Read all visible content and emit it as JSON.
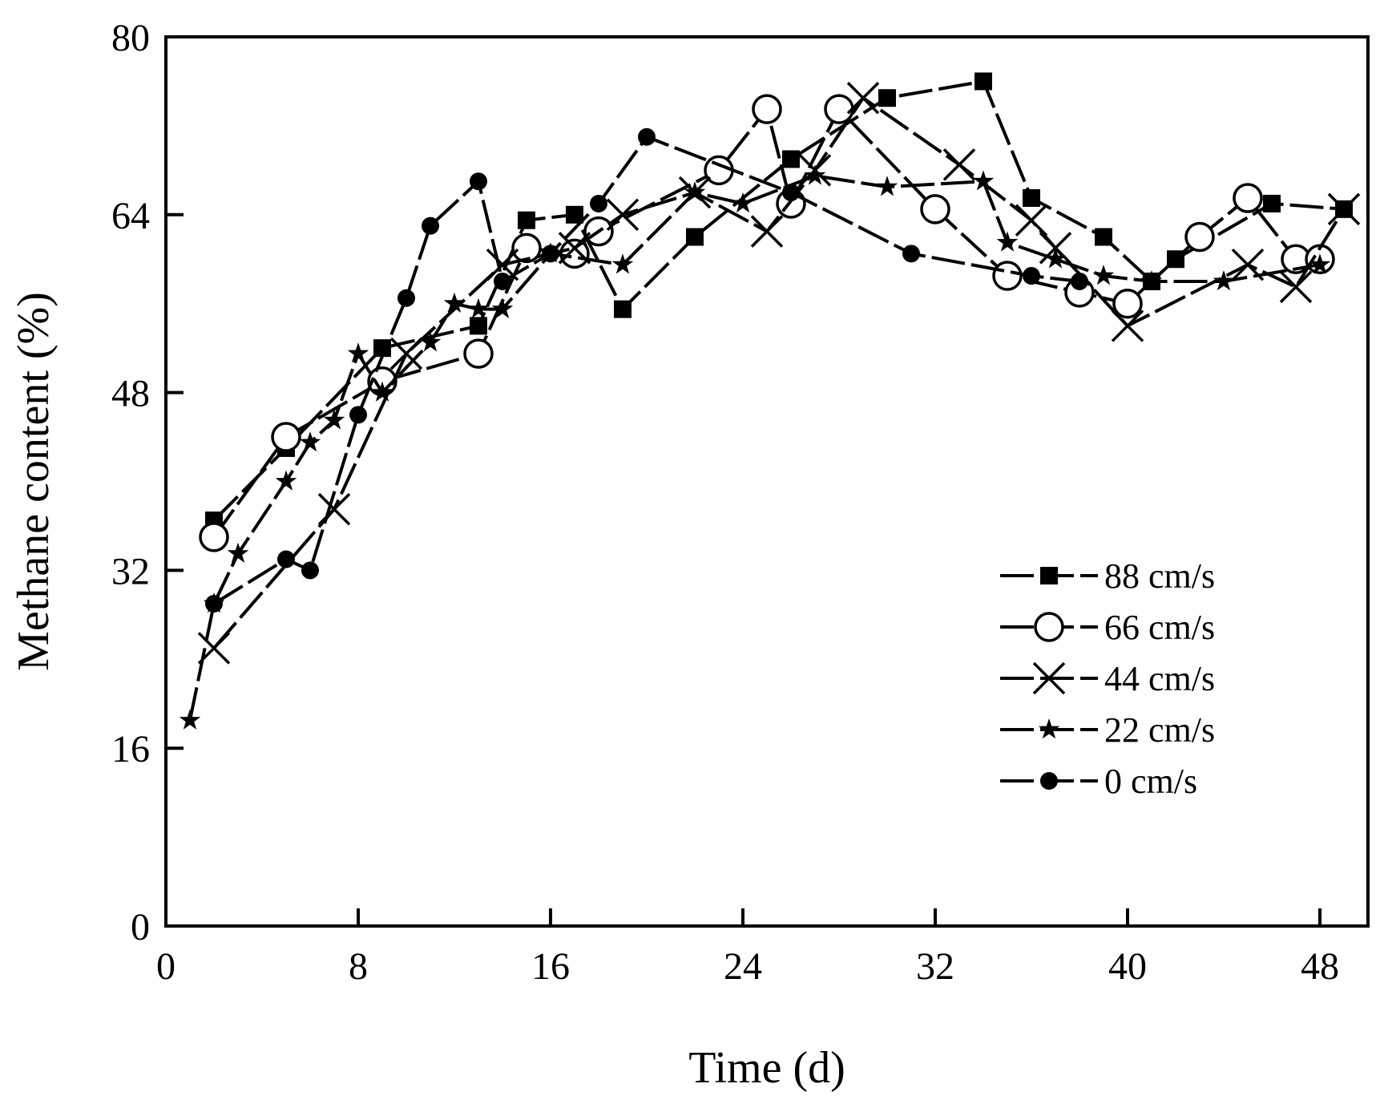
{
  "chart_data": {
    "type": "line",
    "title": "",
    "xlabel": "Time (d)",
    "ylabel": "Methane content (%)",
    "xlim": [
      0,
      50
    ],
    "ylim": [
      0,
      80
    ],
    "xticks": [
      0,
      8,
      16,
      24,
      32,
      40,
      48
    ],
    "yticks": [
      0,
      16,
      32,
      48,
      64,
      80
    ],
    "grid": false,
    "legend_position": "bottom-right",
    "series": [
      {
        "name": "88 cm/s",
        "marker": "filled-square",
        "x": [
          2,
          5,
          9,
          13,
          15,
          17,
          19,
          22,
          26,
          30,
          34,
          36,
          39,
          41,
          42,
          46,
          49
        ],
        "y": [
          36.5,
          43,
          52,
          54,
          63.5,
          64,
          55.5,
          62,
          69,
          74.5,
          76,
          65.5,
          62,
          58,
          60,
          65,
          64.5
        ]
      },
      {
        "name": "66 cm/s",
        "marker": "open-circle",
        "x": [
          2,
          5,
          9,
          13,
          15,
          17,
          18,
          23,
          25,
          26,
          28,
          32,
          35,
          38,
          40,
          43,
          45,
          47,
          48
        ],
        "y": [
          35,
          44,
          49,
          51.5,
          61,
          60.5,
          62.5,
          68,
          73.5,
          65,
          73.5,
          64.5,
          58.5,
          57,
          56,
          62,
          65.5,
          60,
          60
        ]
      },
      {
        "name": "44 cm/s",
        "marker": "x",
        "x": [
          2,
          7,
          10,
          14,
          17,
          19,
          22,
          25,
          27,
          29,
          33,
          36,
          37,
          40,
          45,
          47,
          49
        ],
        "y": [
          25,
          37.5,
          51.5,
          59.5,
          61,
          64,
          66,
          62.5,
          68,
          74.5,
          68.5,
          63.5,
          61,
          54,
          59.5,
          57.5,
          64.5
        ]
      },
      {
        "name": "22 cm/s",
        "marker": "star",
        "x": [
          1,
          2,
          3,
          5,
          6,
          7,
          8,
          9,
          11,
          12,
          13,
          14,
          16,
          19,
          22,
          24,
          27,
          30,
          34,
          35,
          37,
          39,
          41,
          44,
          48
        ],
        "y": [
          18.5,
          29,
          33.5,
          40,
          43.5,
          45.5,
          51.5,
          48,
          52.5,
          56,
          55.5,
          55.5,
          60.5,
          59.5,
          66,
          65,
          67.5,
          66.5,
          67,
          61.5,
          60,
          58.5,
          58,
          58,
          59.5
        ]
      },
      {
        "name": "0  cm/s",
        "marker": "filled-circle",
        "x": [
          2,
          5,
          6,
          8,
          10,
          11,
          13,
          14,
          16,
          18,
          20,
          26,
          31,
          36,
          38
        ],
        "y": [
          29,
          33,
          32,
          46,
          56.5,
          63,
          67,
          58,
          60.5,
          65,
          71,
          66,
          60.5,
          58.5,
          58
        ]
      }
    ]
  }
}
